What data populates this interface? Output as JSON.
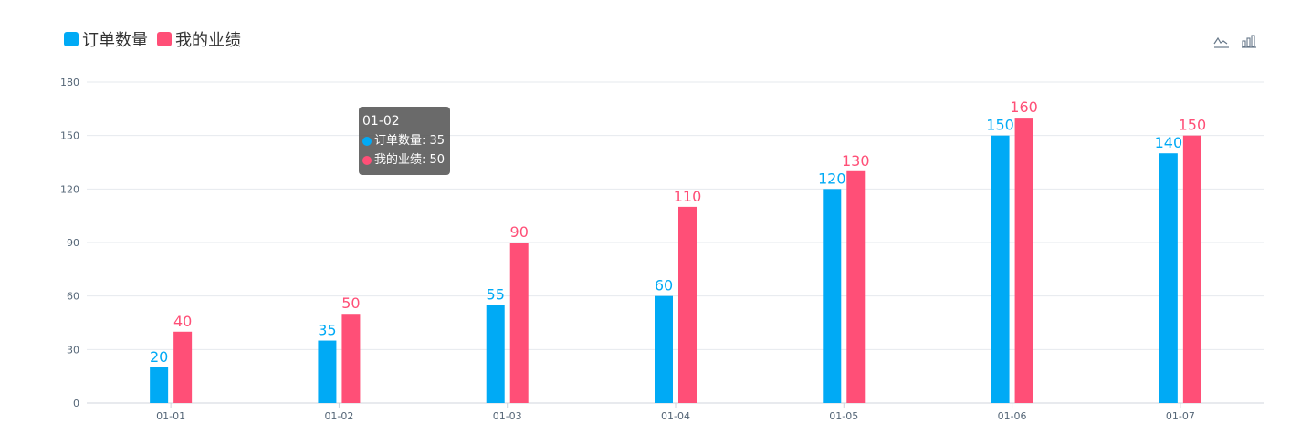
{
  "legend": [
    {
      "name": "订单数量",
      "color": "#00aaf5"
    },
    {
      "name": "我的业绩",
      "color": "#ff4f77"
    }
  ],
  "toolbox": [
    {
      "icon": "line-chart-icon"
    },
    {
      "icon": "bar-chart-icon"
    }
  ],
  "tooltip": {
    "title": "01-02",
    "rows": [
      {
        "label": "订单数量: 35",
        "color": "#00aaf5"
      },
      {
        "label": "我的业绩: 50",
        "color": "#ff4f77"
      }
    ]
  },
  "chart_data": {
    "type": "bar",
    "categories": [
      "01-01",
      "01-02",
      "01-03",
      "01-04",
      "01-05",
      "01-06",
      "01-07"
    ],
    "series": [
      {
        "name": "订单数量",
        "color": "#00aaf5",
        "values": [
          20,
          35,
          55,
          60,
          120,
          150,
          140
        ]
      },
      {
        "name": "我的业绩",
        "color": "#ff4f77",
        "values": [
          40,
          50,
          90,
          110,
          130,
          160,
          150
        ]
      }
    ],
    "ylim": [
      0,
      180
    ],
    "yticks": [
      0,
      30,
      60,
      90,
      120,
      150,
      180
    ],
    "grid": true,
    "legend_position": "top-left",
    "data_labels": true
  }
}
